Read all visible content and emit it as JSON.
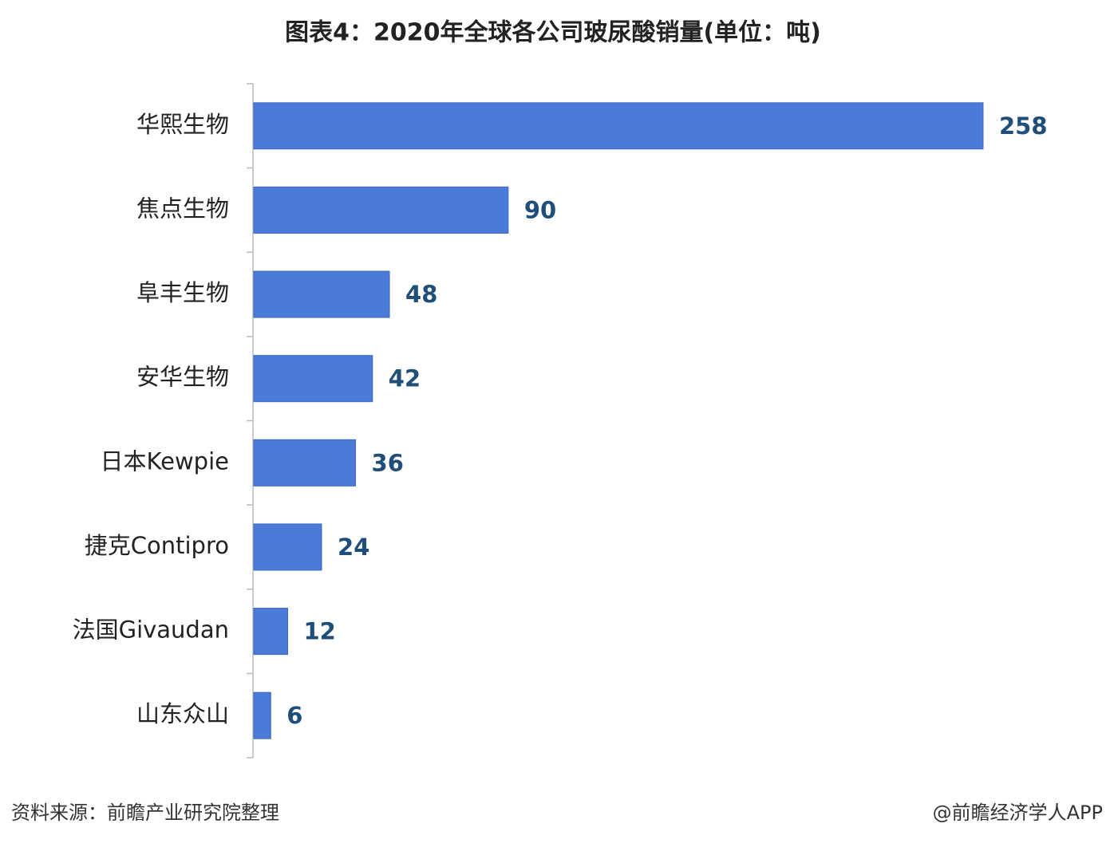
{
  "chart_data": {
    "type": "barh",
    "title": "图表4：2020年全球各公司玻尿酸销量(单位：吨)",
    "categories": [
      "华熙生物",
      "焦点生物",
      "阜丰生物",
      "安华生物",
      "日本Kewpie",
      "捷克Contipro",
      "法国Givaudan",
      "山东众山"
    ],
    "values": [
      258,
      90,
      48,
      42,
      36,
      24,
      12,
      6
    ],
    "color": "#4a7bd8"
  },
  "footer": {
    "source": "资料来源：前瞻产业研究院整理",
    "credit": "@前瞻经济学人APP"
  }
}
